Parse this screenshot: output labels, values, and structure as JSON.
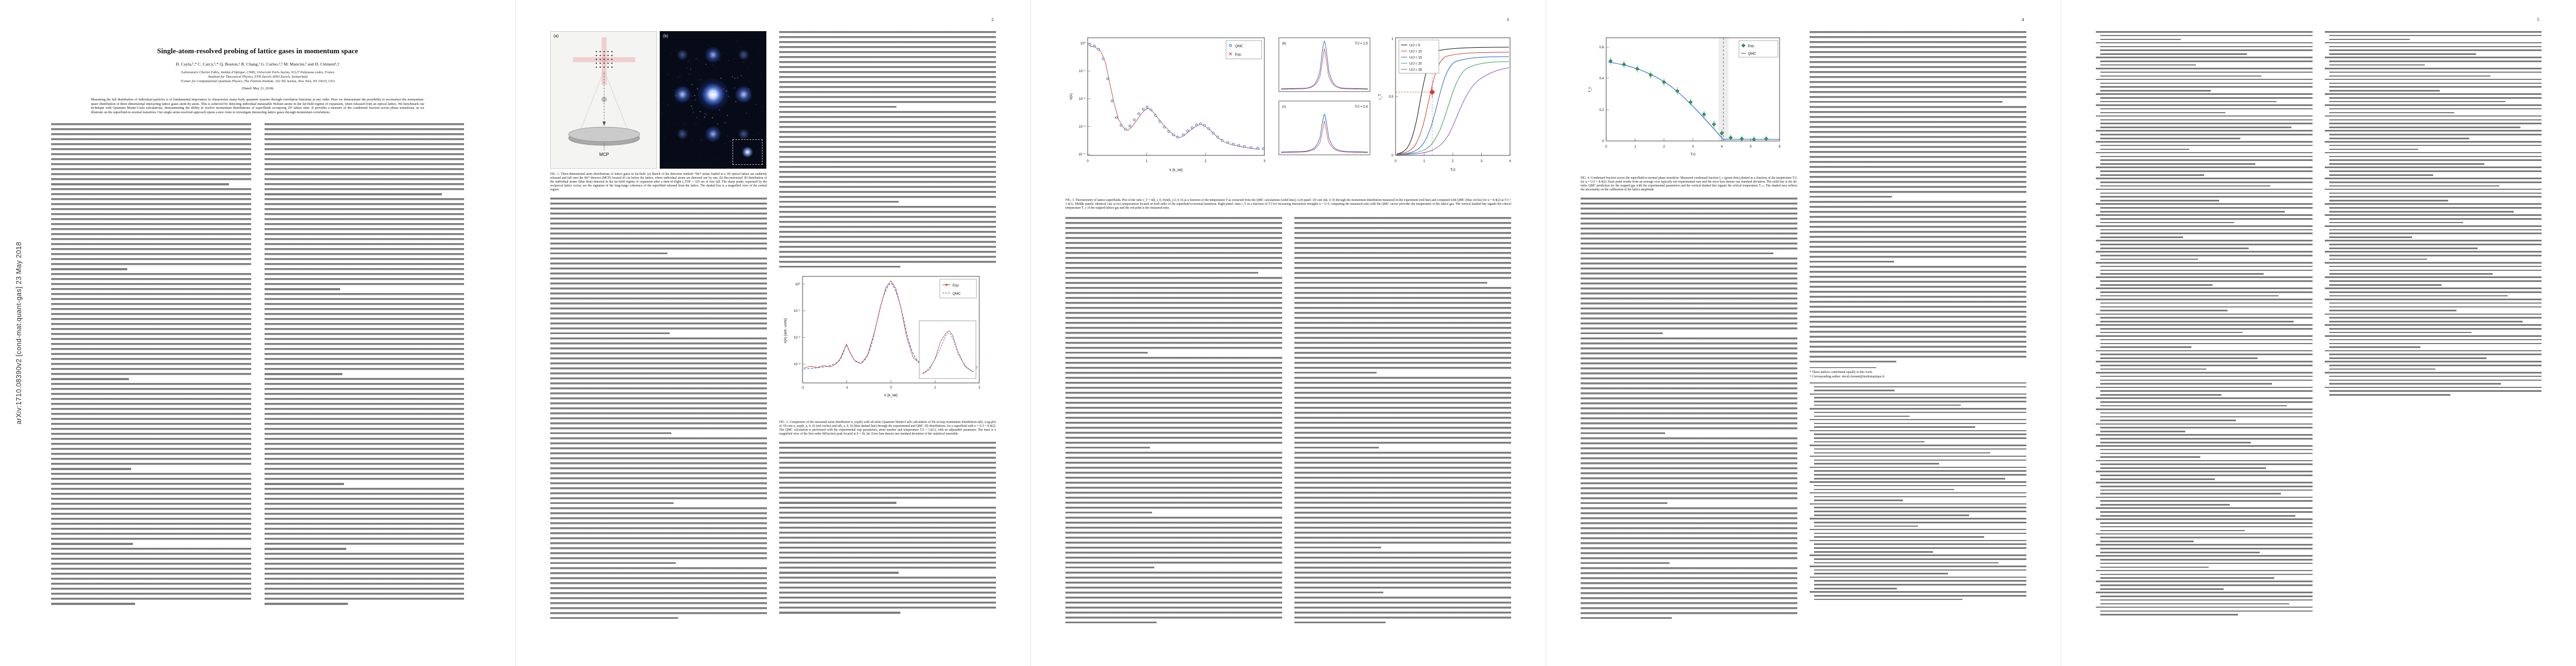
{
  "arxiv": {
    "label": "arXiv:1710.08390v2  [cond-mat.quant-gas]  23 May 2018"
  },
  "page_numbers": {
    "p2": "2",
    "p3": "3",
    "p4": "4",
    "p5": "5"
  },
  "front": {
    "title": "Single-atom-resolved probing of lattice gases in momentum space",
    "authors": "H. Cayla,¹,* C. Carcy,¹,* Q. Bouton,¹ R. Chang,¹ G. Carleo,²,³ M. Mancini,¹ and D. Clément¹,†",
    "affil1": "¹Laboratoire Charles Fabry, Institut d'Optique, CNRS, Université Paris-Saclay, 91127 Palaiseau cedex, France",
    "affil2": "²Institute for Theoretical Physics, ETH Zurich, 8093 Zurich, Switzerland",
    "affil3": "³Center for Computational Quantum Physics, The Flatiron Institute, 162 5th Avenue, New York, NY 10010, USA",
    "dated": "(Dated: May 23, 2018)",
    "abstract": "Measuring the full distribution of individual particles is of fundamental importance to characterize many-body quantum systems through correlation functions at any order. Here we demonstrate the possibility to reconstruct the momentum-space distribution of three-dimensional interacting lattice gases atom-by-atom. This is achieved by detecting individual metastable Helium atoms in the far-field regime of expansion, when released from an optical lattice. We benchmark our technique with Quantum Monte-Carlo calculations, demonstrating the ability to resolve momentum distributions of superfluids occupying 10⁵ lattice sites. It provides a measure of the condensed fraction across phase transitions, as we illustrate on the superfluid-to-normal transition. Our single-atom-resolved approach opens a new route to investigate interacting lattice gases through momentum correlations."
  },
  "fig1": {
    "label_a": "(a)",
    "label_b": "(b)",
    "mcp_label": "MCP",
    "caption": "FIG. 1. Three-dimensional atom distributions of lattice gases in far-field. (a) Sketch of the detection method: ⁴He* atoms loaded in a 3D optical lattice are suddenly released and fall onto the He* detector (MCP) located 43 cm below the lattice, where individual atoms are detected one by one. (b) Reconstructed 3D distribution of the individual atoms (blue dots) detected in the far-field regime of expansion after a time-of-flight t_TOF = 325 ms of free fall. The sharp peaks, separated by the reciprocal lattice vector, are the signature of the long-range coherence of the superfluid released from the lattice. The dashed box is a magnified view of the central region."
  },
  "fig2": {
    "legend_exp": "Exp.",
    "legend_qmc": "QMC",
    "ylabel": "n(k) [arb. units]",
    "xlabel": "k [k_lat]",
    "yticks": [
      "10⁰",
      "10⁻¹",
      "10⁻²",
      "10⁻³"
    ],
    "xticks": [
      "-2",
      "-1",
      "0",
      "1",
      "2"
    ],
    "caption": "FIG. 2. Comparison of the measured atom distribution n_exp(k) with ab-initio Quantum Monte-Carlo calculation of the in-trap momentum distribution n(k). Log-plot of 1D cuts n_exp(k_x, 0, 0) (red circles) and n(k_x, 0, 0) (blue dashed line) through the experimental and QMC 3D distributions, for a superfluid with u = U/J = 8.4(2). The QMC calculation is performed with the experimental trap parameters, atom number and temperature T/J = 1.6(1), with no adjustable parameter. The inset is a magnified view of the first-order diffraction peak located at k = 2k_lat. Error bars denote one standard deviation of the statistical ensemble."
  },
  "fig3": {
    "legend_qmc": "QMC",
    "legend_exp": "Exp.",
    "ylabel_left": "n(k)",
    "xlabel_left": "k [k_lat]",
    "yticks_left": [
      "10⁰",
      "10⁻¹",
      "10⁻²",
      "10⁻³",
      "10⁻⁴"
    ],
    "xticks_left": [
      "0",
      "1",
      "2",
      "3"
    ],
    "label_b": "(b)",
    "label_c": "(c)",
    "panelb_label": "T/J = 1.5",
    "panelc_label": "T/J = 2.4",
    "ylabel_right": "r_T",
    "xlabel_right": "T/J",
    "yticks_right": [
      "0",
      "0.5",
      "1"
    ],
    "xticks_right": [
      "0",
      "1",
      "2",
      "3",
      "4"
    ],
    "legend_u": [
      "U/J = 5",
      "U/J = 10",
      "U/J = 15",
      "U/J = 20",
      "U/J = 26"
    ],
    "caption": "FIG. 3. Thermometry of lattice superfluids. Plot of the ratio r_T = n(k_r, 0, 0)/n(k_r/2, 0, 0) as a function of the temperature T as extracted from the QMC calculations (solid lines). Left panel: 1D cuts n(k, 0, 0) through the momentum distribution measured in the experiment (red line) and computed with QMC (blue circles) for u = 8.4(2) at T/J = 1.6(1). Middle panels: identical cuts at two temperatures located on both sides of the superfluid-to-normal transition. Right panel: ratio r_T as a function of T/J for increasing interaction strengths u = U/J; comparing the measured ratio with the QMC curves provides the temperature of the lattice gas. The vertical dashed line signals the critical temperature T_c of the trapped lattice gas and the red point is the measured ratio."
  },
  "fig4": {
    "legend_exp": "Exp.",
    "legend_qmc": "QMC",
    "ylabel": "f_c",
    "xlabel": "T/J",
    "yticks": [
      "0.6",
      "0.4",
      "0.2",
      "0"
    ],
    "xticks": [
      "0",
      "1",
      "2",
      "3",
      "4",
      "5",
      "6"
    ],
    "caption": "FIG. 4. Condensed fraction across the superfluid-to-normal phase transition. Measured condensed fraction f_c (green dots) plotted as a function of the temperature T/J, for u = U/J = 8.4(2). Each point results from an average over typically ten experimental runs and the error bars denote one standard deviation. The solid line is the ab-initio QMC prediction for the trapped gas with the experimental parameters and the vertical dashed line signals the critical temperature T_c. The shaded area reflects the uncertainty on the calibration of the lattice amplitude."
  },
  "footnotes": {
    "equal_contrib": "* These authors contributed equally to this work.",
    "corresponding": "† Corresponding author: david.clement@institutoptique.fr"
  }
}
